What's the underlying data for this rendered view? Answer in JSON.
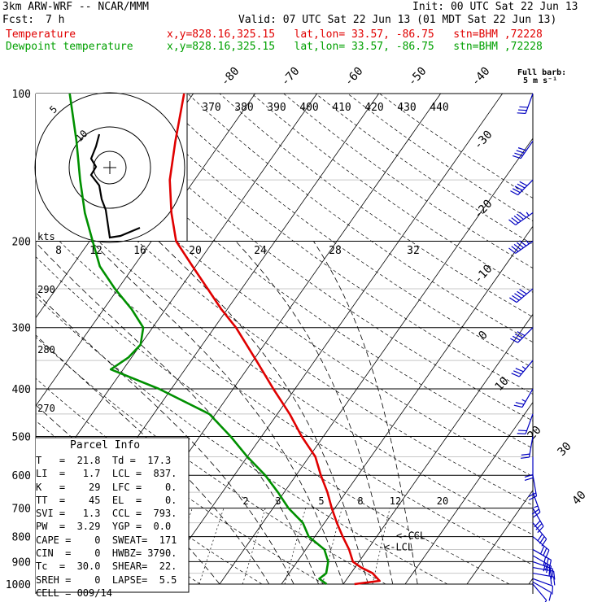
{
  "header": {
    "model": "3km ARW-WRF -- NCAR/MMM",
    "init": "Init: 00 UTC Sat 22 Jun 13",
    "fcst_label": "Fcst:",
    "fcst_value": "7 h",
    "valid": "Valid: 07 UTC Sat 22 Jun 13 (01 MDT Sat 22 Jun 13)",
    "temp_label": "Temperature",
    "dew_label": "Dewpoint temperature",
    "location": "x,y=828.16,325.15   lat,lon= 33.57, -86.75   stn=BHM ,72228"
  },
  "barb_legend": {
    "line1": "Full barb:",
    "line2": "5 m s⁻¹"
  },
  "parcel_info": {
    "title": "Parcel Info",
    "rows": [
      "T   =  21.8  Td =  17.3",
      "LI  =   1.7  LCL =  837.",
      "K   =    29  LFC =    0.",
      "TT  =    45  EL  =    0.",
      "SVI =   1.3  CCL =  793.",
      "PW  =  3.29  YGP =  0.0",
      "CAPE =    0  SWEAT=  171",
      "CIN  =    0  HWBZ= 3790.",
      "Tc  =  30.0  SHEAR=  22.",
      "SREH =    0  LAPSE=  5.5",
      "CELL = 009/14"
    ]
  },
  "colors": {
    "temperature": "#e00000",
    "dewpoint": "#009000",
    "wind": "#0000c0",
    "black": "#000000"
  },
  "chart_data": {
    "type": "line",
    "pressure_labels": [
      "100",
      "200",
      "300",
      "400",
      "500",
      "600",
      "700",
      "800",
      "900",
      "1000"
    ],
    "isotherm_labels": [
      "-80",
      "-70",
      "-60",
      "-50",
      "-40",
      "-30",
      "-20",
      "-10",
      "0",
      "10",
      "20",
      "30",
      "40"
    ],
    "theta_labels": [
      "370",
      "380",
      "390",
      "400",
      "410",
      "420",
      "430",
      "440"
    ],
    "dryadiabat_labels": [
      "290",
      "280",
      "270"
    ],
    "mixing_ratio_labels": [
      "2",
      "3",
      "5",
      "8",
      "12",
      "20"
    ],
    "hodo_speed_labels": [
      "8",
      "12",
      "16",
      "20",
      "24",
      "28",
      "32"
    ],
    "hodo_ring_labels": [
      "5",
      "10"
    ],
    "hodo_units": "kts",
    "lcl_marker": "LCL",
    "ccl_marker": "CCL",
    "marker_arrow": "<",
    "series": [
      {
        "name": "Temperature",
        "points": [
          [
            1000,
            21.8
          ],
          [
            985,
            25.5
          ],
          [
            950,
            23.5
          ],
          [
            925,
            21.0
          ],
          [
            900,
            19.0
          ],
          [
            850,
            17.0
          ],
          [
            800,
            14.5
          ],
          [
            750,
            12.0
          ],
          [
            700,
            9.5
          ],
          [
            650,
            7.0
          ],
          [
            600,
            4.0
          ],
          [
            550,
            1.0
          ],
          [
            500,
            -3.5
          ],
          [
            450,
            -8.0
          ],
          [
            400,
            -13.5
          ],
          [
            350,
            -19.5
          ],
          [
            300,
            -26.5
          ],
          [
            275,
            -31.0
          ],
          [
            250,
            -35.5
          ],
          [
            225,
            -40.5
          ],
          [
            200,
            -46.0
          ],
          [
            175,
            -50.0
          ],
          [
            150,
            -54.0
          ],
          [
            125,
            -57.5
          ],
          [
            100,
            -61.5
          ]
        ]
      },
      {
        "name": "Dewpoint temperature",
        "points": [
          [
            1000,
            17.3
          ],
          [
            975,
            15.5
          ],
          [
            950,
            16.0
          ],
          [
            900,
            15.0
          ],
          [
            850,
            13.0
          ],
          [
            800,
            9.0
          ],
          [
            750,
            6.5
          ],
          [
            700,
            2.5
          ],
          [
            650,
            -1.0
          ],
          [
            600,
            -5.0
          ],
          [
            550,
            -10.0
          ],
          [
            500,
            -15.0
          ],
          [
            450,
            -21.0
          ],
          [
            400,
            -32.0
          ],
          [
            365,
            -42.0
          ],
          [
            345,
            -40.5
          ],
          [
            325,
            -40.0
          ],
          [
            300,
            -41.5
          ],
          [
            275,
            -45.5
          ],
          [
            250,
            -50.5
          ],
          [
            225,
            -55.5
          ],
          [
            200,
            -59.5
          ],
          [
            175,
            -64.0
          ],
          [
            150,
            -68.5
          ],
          [
            125,
            -73.5
          ],
          [
            100,
            -80.0
          ]
        ]
      }
    ],
    "hodograph": [
      [
        0,
        -4
      ],
      [
        2,
        -3
      ],
      [
        4,
        -2
      ],
      [
        6,
        -0.5
      ],
      [
        8,
        2
      ],
      [
        10,
        4.5
      ],
      [
        12,
        7
      ],
      [
        14,
        9
      ],
      [
        15,
        10
      ]
    ],
    "winds": [
      [
        1000,
        5,
        140
      ],
      [
        990,
        5,
        120
      ],
      [
        975,
        6,
        110
      ],
      [
        950,
        10,
        100
      ],
      [
        925,
        12,
        100
      ],
      [
        900,
        14,
        110
      ],
      [
        875,
        15,
        120
      ],
      [
        850,
        15,
        120
      ],
      [
        800,
        16,
        130
      ],
      [
        750,
        16,
        140
      ],
      [
        700,
        15,
        150
      ],
      [
        650,
        14,
        160
      ],
      [
        600,
        12,
        170
      ],
      [
        550,
        11,
        180
      ],
      [
        500,
        10,
        190
      ],
      [
        450,
        12,
        200
      ],
      [
        400,
        14,
        210
      ],
      [
        350,
        18,
        220
      ],
      [
        300,
        22,
        225
      ],
      [
        250,
        26,
        230
      ],
      [
        200,
        28,
        235
      ],
      [
        175,
        28,
        235
      ],
      [
        150,
        26,
        225
      ],
      [
        125,
        22,
        215
      ],
      [
        100,
        15,
        200
      ]
    ],
    "xlim": [
      -40,
      50
    ],
    "ylim": [
      1000,
      100
    ],
    "ylabel": "",
    "xlabel": ""
  }
}
